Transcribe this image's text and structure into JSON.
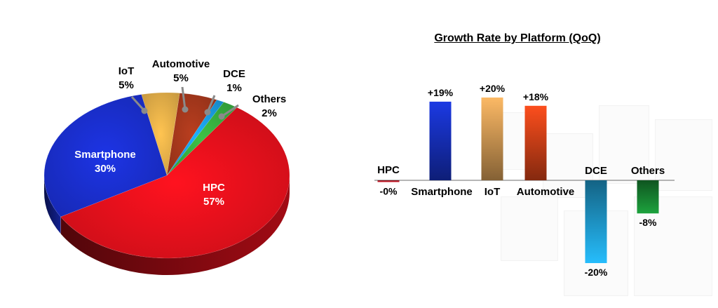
{
  "colors": {
    "hpc": "#e8101c",
    "smartphone": "#1a2fd0",
    "iot": "#e8b24a",
    "automotive": "#a8381c",
    "dce": "#1aa0e8",
    "others": "#38b040",
    "bar_smartphone": "#1a36d8",
    "bar_iot": "#f0b060",
    "bar_automotive": "#f04a1c",
    "bar_dce": "#24b4f0",
    "bar_others": "#1c9a3a",
    "bar_hpc": "#d82030"
  },
  "chart_data": [
    {
      "type": "pie",
      "title": "",
      "slices": [
        {
          "label": "HPC",
          "value_label": "57%",
          "value": 57
        },
        {
          "label": "Smartphone",
          "value_label": "30%",
          "value": 30
        },
        {
          "label": "IoT",
          "value_label": "5%",
          "value": 5
        },
        {
          "label": "Automotive",
          "value_label": "5%",
          "value": 5
        },
        {
          "label": "DCE",
          "value_label": "1%",
          "value": 1
        },
        {
          "label": "Others",
          "value_label": "2%",
          "value": 2
        }
      ]
    },
    {
      "type": "bar",
      "title": "Growth Rate by Platform (QoQ)",
      "categories": [
        "HPC",
        "Smartphone",
        "IoT",
        "Automotive",
        "DCE",
        "Others"
      ],
      "values": [
        -0.3,
        19,
        20,
        18,
        -20,
        -8
      ],
      "value_labels": [
        "-0%",
        "+19%",
        "+20%",
        "+18%",
        "-20%",
        "-8%"
      ],
      "ylim": [
        -22,
        22
      ]
    }
  ]
}
